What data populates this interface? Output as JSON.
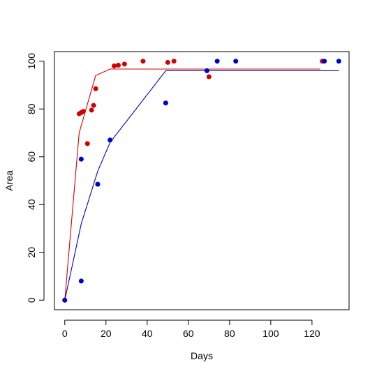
{
  "chart_data": {
    "type": "scatter",
    "title": "",
    "xlabel": "Days",
    "ylabel": "Area",
    "xlim": [
      -5,
      138
    ],
    "ylim": [
      -4,
      104
    ],
    "x_ticks": [
      0,
      20,
      40,
      60,
      80,
      100,
      120
    ],
    "y_ticks": [
      0,
      20,
      40,
      60,
      80,
      100
    ],
    "grid": false,
    "legend": "none",
    "series": [
      {
        "color": "#d40000",
        "points": [
          {
            "x": 0,
            "y": 0
          },
          {
            "x": 7,
            "y": 78
          },
          {
            "x": 8,
            "y": 78.5
          },
          {
            "x": 9,
            "y": 79
          },
          {
            "x": 11,
            "y": 65.5
          },
          {
            "x": 13,
            "y": 79.5
          },
          {
            "x": 14,
            "y": 81.5
          },
          {
            "x": 15,
            "y": 88.5
          },
          {
            "x": 24,
            "y": 98
          },
          {
            "x": 26,
            "y": 98.3
          },
          {
            "x": 29,
            "y": 98.8
          },
          {
            "x": 38,
            "y": 100
          },
          {
            "x": 50,
            "y": 99.5
          },
          {
            "x": 53,
            "y": 100
          },
          {
            "x": 70,
            "y": 93.5
          },
          {
            "x": 125,
            "y": 100
          }
        ],
        "fit": [
          {
            "x": 0,
            "y": 0
          },
          {
            "x": 7,
            "y": 70
          },
          {
            "x": 15,
            "y": 94
          },
          {
            "x": 22,
            "y": 96.7
          },
          {
            "x": 124,
            "y": 96.7
          }
        ]
      },
      {
        "color": "#0000cc",
        "points": [
          {
            "x": 0,
            "y": 0
          },
          {
            "x": 8,
            "y": 8
          },
          {
            "x": 8,
            "y": 59
          },
          {
            "x": 16,
            "y": 48.5
          },
          {
            "x": 22,
            "y": 67
          },
          {
            "x": 49,
            "y": 82.5
          },
          {
            "x": 69,
            "y": 96
          },
          {
            "x": 74,
            "y": 100
          },
          {
            "x": 83,
            "y": 100
          },
          {
            "x": 126,
            "y": 100
          },
          {
            "x": 133,
            "y": 100
          }
        ],
        "fit": [
          {
            "x": 0,
            "y": 0
          },
          {
            "x": 8,
            "y": 32
          },
          {
            "x": 16,
            "y": 54
          },
          {
            "x": 22,
            "y": 66
          },
          {
            "x": 49,
            "y": 96
          },
          {
            "x": 133,
            "y": 96
          }
        ]
      }
    ]
  }
}
